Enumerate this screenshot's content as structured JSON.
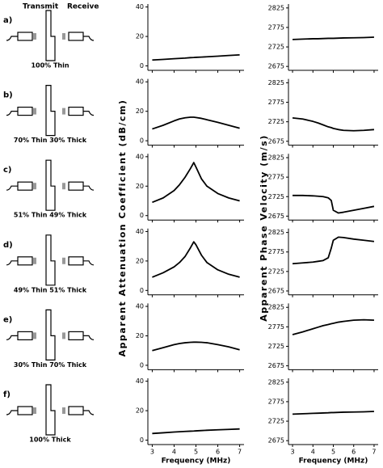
{
  "header": {
    "transmit": "Transmit",
    "receive": "Receive"
  },
  "panels": [
    {
      "label": "a)",
      "caption": "100% Thin"
    },
    {
      "label": "b)",
      "caption": "70% Thin 30% Thick"
    },
    {
      "label": "c)",
      "caption": "51% Thin 49% Thick"
    },
    {
      "label": "d)",
      "caption": "49% Thin 51% Thick"
    },
    {
      "label": "e)",
      "caption": "30% Thin 70% Thick"
    },
    {
      "label": "f)",
      "caption": "100% Thick"
    }
  ],
  "chart_data": [
    {
      "type": "line",
      "x": [
        3,
        3.5,
        4,
        4.25,
        4.5,
        4.75,
        4.9,
        5,
        5.25,
        5.5,
        6,
        6.5,
        7
      ],
      "values": [
        4,
        4.4,
        4.9,
        5.1,
        5.3,
        5.6,
        5.7,
        5.8,
        6.0,
        6.2,
        6.6,
        7.1,
        7.5
      ],
      "xlim": [
        2.8,
        7.2
      ],
      "xticks": [
        3,
        4,
        5,
        6,
        7
      ],
      "ylim": [
        -3,
        42
      ],
      "yticks": [
        0,
        20,
        40
      ],
      "color": "#000000"
    },
    {
      "type": "line",
      "x": [
        3,
        3.5,
        4,
        4.25,
        4.5,
        4.75,
        4.9,
        5,
        5.25,
        5.5,
        6,
        6.5,
        7
      ],
      "values": [
        8,
        10.5,
        13.5,
        14.8,
        15.6,
        16,
        16,
        15.8,
        15.2,
        14.3,
        12.5,
        10.5,
        8.5
      ],
      "xlim": [
        2.8,
        7.2
      ],
      "xticks": [
        3,
        4,
        5,
        6,
        7
      ],
      "ylim": [
        -3,
        42
      ],
      "yticks": [
        0,
        20,
        40
      ],
      "color": "#000000"
    },
    {
      "type": "line",
      "x": [
        3,
        3.5,
        4,
        4.25,
        4.5,
        4.75,
        4.9,
        5,
        5.25,
        5.5,
        6,
        6.5,
        7
      ],
      "values": [
        9,
        12,
        17,
        21,
        26,
        32,
        36,
        33,
        25,
        20,
        15,
        12,
        10
      ],
      "xlim": [
        2.8,
        7.2
      ],
      "xticks": [
        3,
        4,
        5,
        6,
        7
      ],
      "ylim": [
        -3,
        42
      ],
      "yticks": [
        0,
        20,
        40
      ],
      "color": "#000000",
      "ylabel": "Apparent Attenuation Coefficient (dB/cm)"
    },
    {
      "type": "line",
      "x": [
        3,
        3.5,
        4,
        4.25,
        4.5,
        4.75,
        4.9,
        5,
        5.25,
        5.5,
        6,
        6.5,
        7
      ],
      "values": [
        9,
        12,
        16,
        19,
        23,
        29,
        33,
        31,
        24,
        19,
        14,
        11,
        9
      ],
      "xlim": [
        2.8,
        7.2
      ],
      "xticks": [
        3,
        4,
        5,
        6,
        7
      ],
      "ylim": [
        -3,
        42
      ],
      "yticks": [
        0,
        20,
        40
      ],
      "color": "#000000"
    },
    {
      "type": "line",
      "x": [
        3,
        3.5,
        4,
        4.25,
        4.5,
        4.75,
        4.9,
        5,
        5.25,
        5.5,
        6,
        6.5,
        7
      ],
      "values": [
        10,
        12,
        14,
        14.8,
        15.3,
        15.6,
        15.7,
        15.7,
        15.6,
        15.3,
        14,
        12.5,
        10.5
      ],
      "xlim": [
        2.8,
        7.2
      ],
      "xticks": [
        3,
        4,
        5,
        6,
        7
      ],
      "ylim": [
        -3,
        42
      ],
      "yticks": [
        0,
        20,
        40
      ],
      "color": "#000000"
    },
    {
      "type": "line",
      "x": [
        3,
        3.5,
        4,
        4.25,
        4.5,
        4.75,
        4.9,
        5,
        5.25,
        5.5,
        6,
        6.5,
        7
      ],
      "values": [
        4.5,
        5,
        5.5,
        5.7,
        5.9,
        6.1,
        6.2,
        6.3,
        6.5,
        6.7,
        7,
        7.3,
        7.6
      ],
      "xlim": [
        2.8,
        7.2
      ],
      "xticks": [
        3,
        4,
        5,
        6,
        7
      ],
      "ylim": [
        -3,
        42
      ],
      "yticks": [
        0,
        20,
        40
      ],
      "color": "#000000",
      "xlabel": "Frequency (MHz)"
    },
    {
      "type": "line",
      "x": [
        3,
        3.5,
        4,
        4.25,
        4.5,
        4.75,
        4.9,
        5,
        5.25,
        5.5,
        6,
        6.5,
        7
      ],
      "values": [
        2744,
        2745,
        2746,
        2746,
        2746.5,
        2747,
        2747,
        2747,
        2747.5,
        2748,
        2748.5,
        2749,
        2750
      ],
      "xlim": [
        2.8,
        7.2
      ],
      "xticks": [
        3,
        4,
        5,
        6,
        7
      ],
      "ylim": [
        2665,
        2835
      ],
      "yticks": [
        2675,
        2725,
        2775,
        2825
      ],
      "color": "#000000"
    },
    {
      "type": "line",
      "x": [
        3,
        3.5,
        4,
        4.25,
        4.5,
        4.75,
        4.9,
        5,
        5.25,
        5.5,
        6,
        6.5,
        7
      ],
      "values": [
        2735,
        2732,
        2726,
        2722,
        2717,
        2712,
        2710,
        2708,
        2705,
        2703,
        2702,
        2703,
        2705
      ],
      "xlim": [
        2.8,
        7.2
      ],
      "xticks": [
        3,
        4,
        5,
        6,
        7
      ],
      "ylim": [
        2665,
        2835
      ],
      "yticks": [
        2675,
        2725,
        2775,
        2825
      ],
      "color": "#000000"
    },
    {
      "type": "line",
      "x": [
        3,
        3.5,
        4,
        4.25,
        4.5,
        4.75,
        4.9,
        5,
        5.25,
        5.5,
        6,
        6.5,
        7
      ],
      "values": [
        2728,
        2728,
        2727,
        2726,
        2725,
        2722,
        2715,
        2690,
        2683,
        2685,
        2690,
        2695,
        2700
      ],
      "xlim": [
        2.8,
        7.2
      ],
      "xticks": [
        3,
        4,
        5,
        6,
        7
      ],
      "ylim": [
        2665,
        2835
      ],
      "yticks": [
        2675,
        2725,
        2775,
        2825
      ],
      "color": "#000000",
      "ylabel": "Apparent Phase Velocity (m/s)"
    },
    {
      "type": "line",
      "x": [
        3,
        3.5,
        4,
        4.25,
        4.5,
        4.75,
        4.9,
        5,
        5.25,
        5.5,
        6,
        6.5,
        7
      ],
      "values": [
        2745,
        2747,
        2749,
        2751,
        2753,
        2760,
        2785,
        2805,
        2813,
        2812,
        2808,
        2805,
        2802
      ],
      "xlim": [
        2.8,
        7.2
      ],
      "xticks": [
        3,
        4,
        5,
        6,
        7
      ],
      "ylim": [
        2665,
        2835
      ],
      "yticks": [
        2675,
        2725,
        2775,
        2825
      ],
      "color": "#000000"
    },
    {
      "type": "line",
      "x": [
        3,
        3.5,
        4,
        4.25,
        4.5,
        4.75,
        4.9,
        5,
        5.25,
        5.5,
        6,
        6.5,
        7
      ],
      "values": [
        2755,
        2762,
        2770,
        2774,
        2778,
        2781,
        2783,
        2784,
        2787,
        2789,
        2792,
        2793,
        2792
      ],
      "xlim": [
        2.8,
        7.2
      ],
      "xticks": [
        3,
        4,
        5,
        6,
        7
      ],
      "ylim": [
        2665,
        2835
      ],
      "yticks": [
        2675,
        2725,
        2775,
        2825
      ],
      "color": "#000000"
    },
    {
      "type": "line",
      "x": [
        3,
        3.5,
        4,
        4.25,
        4.5,
        4.75,
        4.9,
        5,
        5.25,
        5.5,
        6,
        6.5,
        7
      ],
      "values": [
        2743,
        2744,
        2745,
        2745.5,
        2746,
        2746.5,
        2747,
        2747,
        2747.5,
        2748,
        2748.5,
        2749,
        2750
      ],
      "xlim": [
        2.8,
        7.2
      ],
      "xticks": [
        3,
        4,
        5,
        6,
        7
      ],
      "ylim": [
        2665,
        2835
      ],
      "yticks": [
        2675,
        2725,
        2775,
        2825
      ],
      "color": "#000000",
      "xlabel": "Frequency (MHz)"
    }
  ]
}
